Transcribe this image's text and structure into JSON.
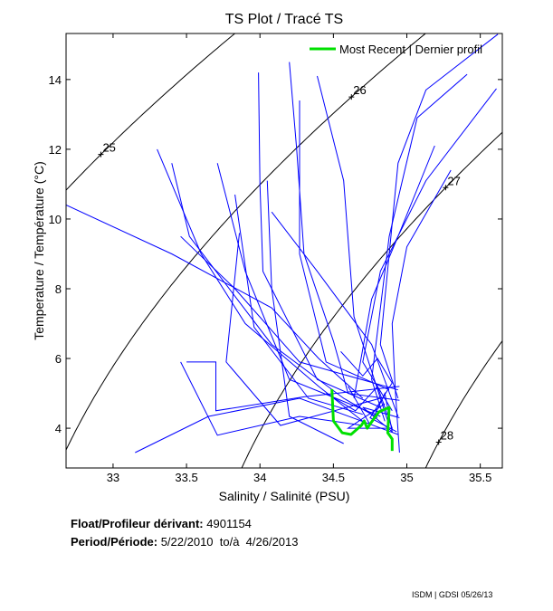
{
  "chart_data": {
    "type": "line",
    "title": "TS Plot / Tracé TS",
    "xlabel": "Salinity / Salinité (PSU)",
    "ylabel": "Temperature / Température (°C)",
    "xlim": [
      32.68,
      35.65
    ],
    "ylim": [
      2.86,
      15.32
    ],
    "x_ticks": [
      33,
      33.5,
      34,
      34.5,
      35,
      35.5
    ],
    "x_tick_labels": [
      "33",
      "33.5",
      "34",
      "34.5",
      "35",
      "35.5"
    ],
    "y_ticks": [
      4,
      6,
      8,
      10,
      12,
      14
    ],
    "y_tick_labels": [
      "4",
      "6",
      "8",
      "10",
      "12",
      "14"
    ],
    "grid": false,
    "legend": {
      "placement": "top-right",
      "entries": [
        {
          "label": "Most Recent | Dernier profil",
          "color": "#00e000"
        }
      ]
    },
    "density_contours": [
      {
        "sigma": 25,
        "label": "25",
        "label_T": 11.85
      },
      {
        "sigma": 26,
        "label": "26",
        "label_T": 13.5
      },
      {
        "sigma": 27,
        "label": "27",
        "label_T": 10.9
      },
      {
        "sigma": 28,
        "label": "28",
        "label_T": 3.6
      }
    ],
    "profiles_color": "#0000ff",
    "profiles": [
      [
        [
          32.68,
          10.4
        ],
        [
          33.4,
          9.0
        ],
        [
          34.08,
          7.45
        ],
        [
          34.4,
          6.0
        ],
        [
          34.7,
          4.86
        ]
      ],
      [
        [
          33.99,
          14.2
        ],
        [
          34.0,
          11.0
        ],
        [
          34.02,
          8.5
        ],
        [
          34.39,
          5.4
        ],
        [
          34.82,
          4.6
        ]
      ],
      [
        [
          35.61,
          13.74
        ],
        [
          35.13,
          11.1
        ],
        [
          34.82,
          8.5
        ],
        [
          34.7,
          5.9
        ],
        [
          34.9,
          4.5
        ]
      ],
      [
        [
          35.41,
          14.15
        ],
        [
          35.07,
          12.9
        ],
        [
          34.88,
          9.5
        ],
        [
          34.76,
          5.4
        ],
        [
          34.85,
          4.2
        ]
      ],
      [
        [
          35.62,
          15.3
        ],
        [
          35.13,
          13.7
        ],
        [
          34.94,
          11.6
        ],
        [
          34.82,
          6.4
        ],
        [
          34.94,
          4.86
        ]
      ],
      [
        [
          33.4,
          11.6
        ],
        [
          33.52,
          9.5
        ],
        [
          34.08,
          6.4
        ],
        [
          34.57,
          4.86
        ],
        [
          34.8,
          4.3
        ]
      ],
      [
        [
          33.71,
          11.6
        ],
        [
          33.9,
          8.5
        ],
        [
          34.2,
          5.4
        ],
        [
          34.82,
          4.34
        ]
      ],
      [
        [
          33.83,
          10.7
        ],
        [
          33.96,
          6.9
        ],
        [
          34.33,
          4.86
        ],
        [
          34.7,
          4.4
        ]
      ],
      [
        [
          34.27,
          13.4
        ],
        [
          34.27,
          9.0
        ],
        [
          34.45,
          5.9
        ],
        [
          34.88,
          5.1
        ]
      ],
      [
        [
          34.39,
          14.1
        ],
        [
          34.57,
          11.1
        ],
        [
          34.64,
          7.2
        ],
        [
          34.88,
          4.08
        ]
      ],
      [
        [
          33.46,
          5.9
        ],
        [
          33.71,
          3.8
        ],
        [
          34.27,
          4.34
        ],
        [
          34.7,
          4.08
        ]
      ],
      [
        [
          33.15,
          3.3
        ],
        [
          33.65,
          4.34
        ],
        [
          34.27,
          4.86
        ],
        [
          34.94,
          3.82
        ]
      ],
      [
        [
          33.46,
          9.5
        ],
        [
          33.83,
          8.0
        ],
        [
          34.27,
          5.9
        ],
        [
          34.94,
          5.1
        ]
      ],
      [
        [
          34.05,
          11.1
        ],
        [
          34.08,
          8.0
        ],
        [
          34.2,
          4.34
        ],
        [
          34.57,
          3.56
        ]
      ],
      [
        [
          35.19,
          12.1
        ],
        [
          34.94,
          9.5
        ],
        [
          34.76,
          7.7
        ],
        [
          34.64,
          4.86
        ]
      ],
      [
        [
          34.08,
          10.2
        ],
        [
          34.39,
          8.5
        ],
        [
          34.76,
          6.4
        ],
        [
          34.94,
          4.34
        ]
      ],
      [
        [
          33.86,
          9.6
        ],
        [
          33.77,
          5.9
        ],
        [
          34.14,
          4.08
        ],
        [
          34.82,
          4.86
        ]
      ],
      [
        [
          33.5,
          5.9
        ],
        [
          33.7,
          5.9
        ],
        [
          33.7,
          4.5
        ],
        [
          34.3,
          4.9
        ],
        [
          34.95,
          5.2
        ]
      ],
      [
        [
          34.2,
          14.5
        ],
        [
          34.25,
          12.0
        ],
        [
          34.3,
          9.0
        ],
        [
          34.5,
          6.5
        ],
        [
          34.6,
          5.0
        ],
        [
          34.95,
          4.8
        ]
      ],
      [
        [
          35.3,
          11.4
        ],
        [
          35.0,
          9.2
        ],
        [
          34.9,
          7.0
        ],
        [
          34.92,
          5.2
        ],
        [
          34.95,
          3.3
        ]
      ],
      [
        [
          34.6,
          5.2
        ],
        [
          34.75,
          4.1
        ],
        [
          34.85,
          5.0
        ],
        [
          34.9,
          3.9
        ],
        [
          34.7,
          4.6
        ],
        [
          34.95,
          4.3
        ]
      ],
      [
        [
          34.45,
          5.0
        ],
        [
          34.65,
          4.5
        ],
        [
          34.8,
          5.2
        ],
        [
          34.9,
          4.0
        ],
        [
          34.6,
          4.0
        ],
        [
          34.85,
          4.7
        ]
      ],
      [
        [
          34.55,
          6.2
        ],
        [
          34.7,
          5.5
        ],
        [
          34.8,
          6.0
        ],
        [
          34.9,
          5.3
        ],
        [
          34.75,
          4.3
        ],
        [
          34.93,
          3.9
        ]
      ],
      [
        [
          33.3,
          12.0
        ],
        [
          33.6,
          9.0
        ],
        [
          33.9,
          7.0
        ],
        [
          34.4,
          5.2
        ],
        [
          34.7,
          4.2
        ]
      ]
    ],
    "most_recent_profile": [
      [
        34.49,
        5.12
      ],
      [
        34.5,
        4.21
      ],
      [
        34.56,
        3.87
      ],
      [
        34.62,
        3.82
      ],
      [
        34.69,
        4.08
      ],
      [
        34.71,
        4.21
      ],
      [
        34.73,
        4.0
      ],
      [
        34.76,
        4.18
      ],
      [
        34.81,
        4.47
      ],
      [
        34.88,
        4.6
      ],
      [
        34.87,
        3.87
      ],
      [
        34.9,
        3.69
      ],
      [
        34.9,
        3.35
      ]
    ],
    "most_recent_color": "#00e000"
  },
  "info": {
    "float_label": "Float/Profileur dérivant:",
    "float_value": "4901154",
    "period_label": "Period/Période:",
    "period_value": "5/22/2010  to/à  4/26/2013"
  },
  "footer": "ISDM | GDSI  05/26/13"
}
